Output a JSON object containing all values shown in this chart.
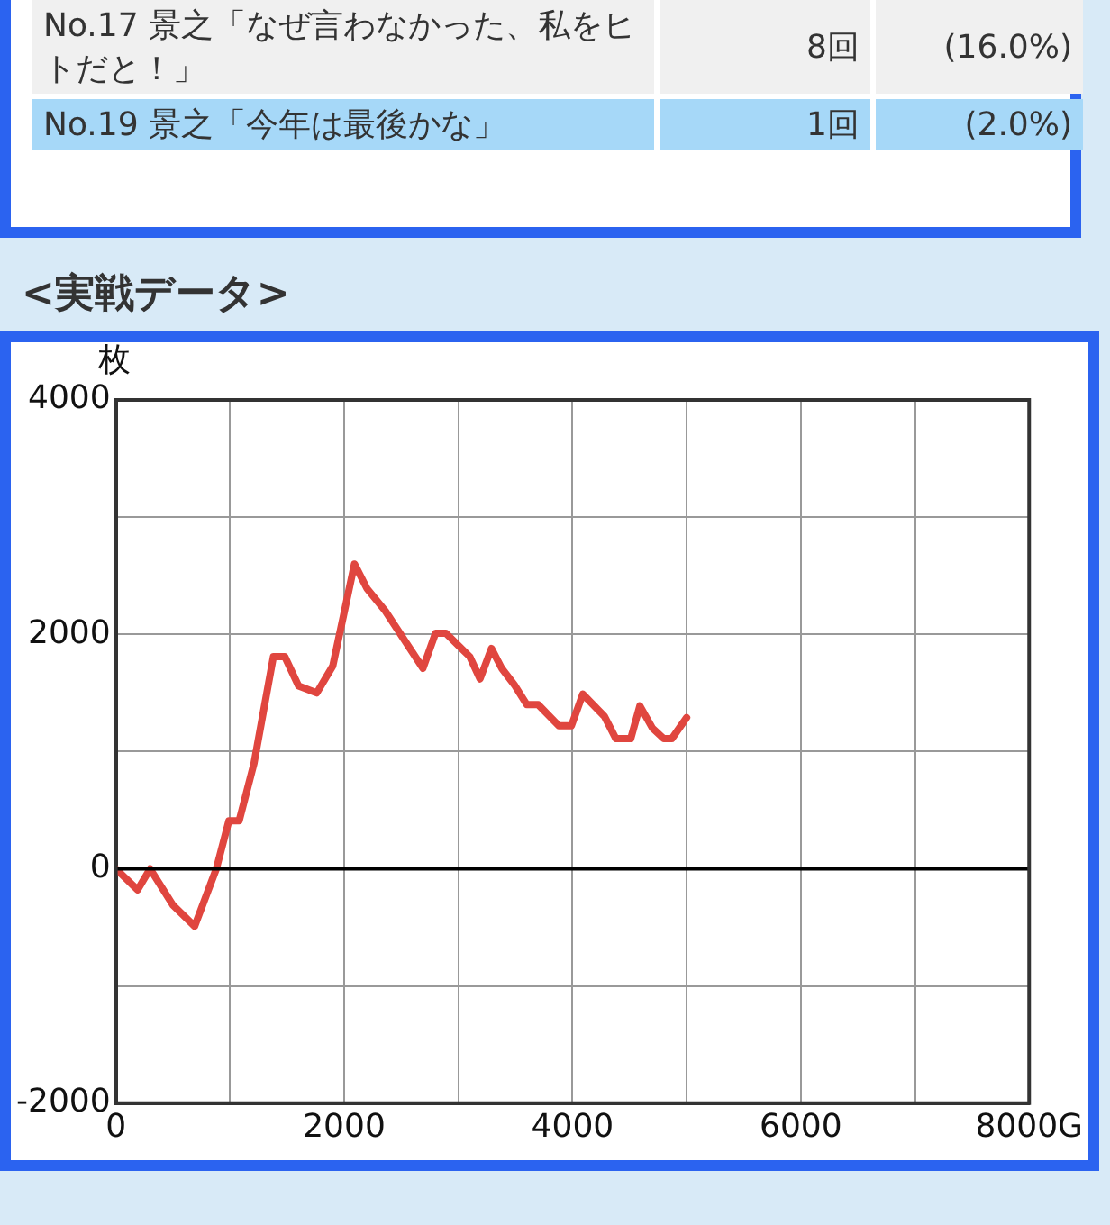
{
  "chart_data": {
    "type": "line",
    "title": "<実戦データ>",
    "ylabel": "枚",
    "annotations": [
      "No.17 景之「なぜ言わなかった、私をヒトだと！」",
      "8回",
      "(16.0%)",
      "No.19 景之「今年は最後かな」",
      "1回",
      "(2.0%)"
    ],
    "x": [
      0,
      190,
      300,
      500,
      690,
      880,
      990,
      1080,
      1210,
      1380,
      1480,
      1600,
      1760,
      1900,
      2090,
      2200,
      2360,
      2690,
      2800,
      2890,
      3100,
      3190,
      3290,
      3380,
      3490,
      3600,
      3700,
      3880,
      3990,
      4090,
      4280,
      4380,
      4510,
      4590,
      4700,
      4800,
      4870,
      5000
    ],
    "series": [
      {
        "color": "#e0463f",
        "values": [
          0,
          -180,
          0,
          -310,
          -490,
          0,
          410,
          410,
          900,
          1810,
          1810,
          1560,
          1500,
          1730,
          2600,
          2390,
          2200,
          1710,
          2010,
          2010,
          1810,
          1620,
          1880,
          1710,
          1570,
          1400,
          1400,
          1220,
          1220,
          1490,
          1300,
          1110,
          1110,
          1390,
          1200,
          1110,
          1110,
          1290
        ]
      }
    ],
    "xlim": [
      0,
      8000
    ],
    "xticks": [
      0,
      {
        "value": 1000,
        "label": null
      },
      2000,
      {
        "value": 3000,
        "label": null
      },
      4000,
      {
        "value": 5000,
        "label": null
      },
      6000,
      {
        "value": 7000,
        "label": null
      },
      {
        "value": 8000,
        "label": "8000G"
      }
    ],
    "ylim": [
      -2000,
      4000
    ],
    "yticks": [
      -2000,
      {
        "value": -1000,
        "label": null
      },
      0,
      {
        "value": 1000,
        "label": null
      },
      2000,
      {
        "value": 3000,
        "label": null
      },
      4000
    ],
    "ref_lines": [
      {
        "axis": "y",
        "value": 0,
        "color": "#000000"
      }
    ],
    "grid": true,
    "legend": false,
    "marker": "none",
    "line_style": "solid"
  }
}
